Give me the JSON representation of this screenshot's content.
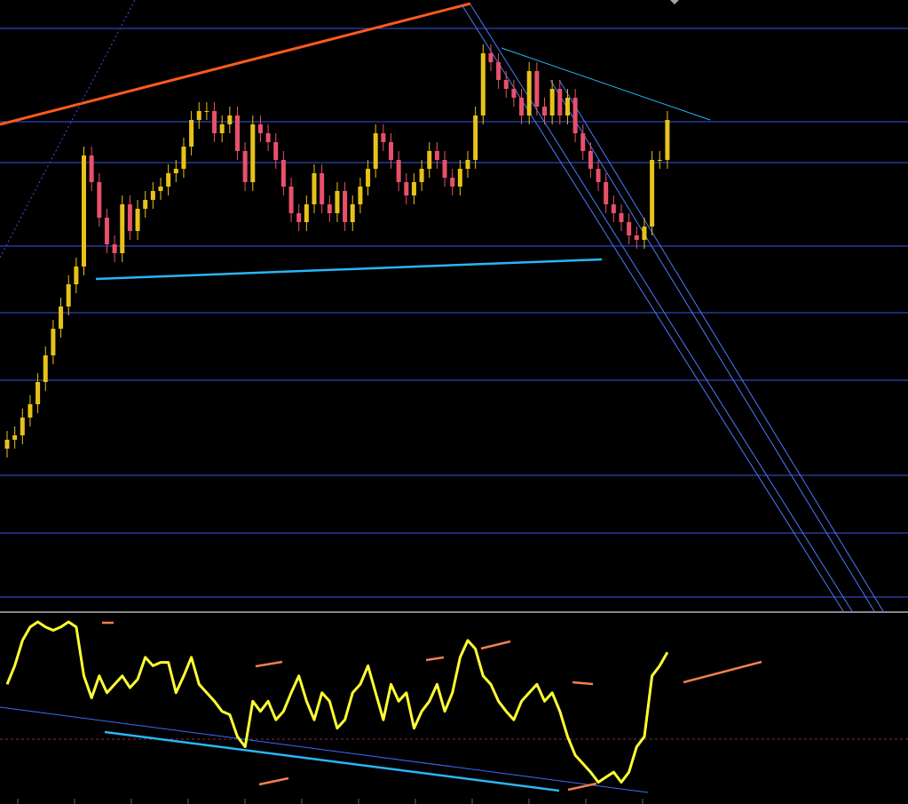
{
  "chart_data": [
    {
      "type": "candlestick",
      "up_color": "#e6c21a",
      "down_color": "#e8506a",
      "ylim": [
        0,
        690
      ],
      "open": [
        185,
        195,
        200,
        220,
        235,
        260,
        290,
        320,
        345,
        370,
        390,
        515,
        485,
        445,
        415,
        405,
        460,
        430,
        455,
        465,
        475,
        480,
        495,
        500,
        525,
        555,
        565,
        565,
        540,
        550,
        560,
        520,
        485,
        550,
        540,
        530,
        510,
        480,
        450,
        440,
        460,
        495,
        460,
        450,
        475,
        440,
        460,
        480,
        500,
        540,
        530,
        510,
        485,
        470,
        485,
        500,
        520,
        510,
        490,
        480,
        500,
        510,
        560,
        630,
        620,
        600,
        590,
        580,
        560,
        610,
        570,
        560,
        590,
        560,
        580,
        540,
        520,
        500,
        485,
        460,
        450,
        440,
        425,
        420,
        435,
        510,
        510
      ],
      "high": [
        205,
        210,
        230,
        245,
        270,
        300,
        330,
        355,
        380,
        400,
        525,
        525,
        495,
        455,
        425,
        470,
        470,
        465,
        475,
        485,
        490,
        505,
        510,
        535,
        565,
        575,
        575,
        575,
        560,
        570,
        570,
        530,
        560,
        560,
        550,
        540,
        520,
        490,
        460,
        470,
        505,
        505,
        470,
        485,
        485,
        470,
        490,
        510,
        550,
        550,
        540,
        520,
        495,
        495,
        510,
        530,
        530,
        520,
        500,
        510,
        520,
        570,
        640,
        640,
        630,
        610,
        600,
        590,
        620,
        620,
        580,
        600,
        600,
        590,
        590,
        550,
        530,
        510,
        495,
        470,
        460,
        450,
        435,
        445,
        520,
        520,
        565
      ],
      "low": [
        175,
        185,
        190,
        210,
        225,
        250,
        280,
        310,
        335,
        360,
        380,
        475,
        435,
        405,
        395,
        395,
        420,
        420,
        445,
        455,
        465,
        470,
        485,
        490,
        515,
        545,
        555,
        530,
        530,
        540,
        510,
        475,
        475,
        530,
        520,
        500,
        470,
        440,
        430,
        430,
        450,
        450,
        440,
        440,
        430,
        430,
        450,
        470,
        490,
        520,
        500,
        475,
        460,
        460,
        475,
        490,
        500,
        480,
        470,
        470,
        490,
        500,
        550,
        610,
        590,
        580,
        570,
        550,
        550,
        560,
        550,
        550,
        550,
        550,
        530,
        510,
        490,
        475,
        450,
        440,
        430,
        415,
        410,
        410,
        425,
        500,
        500
      ],
      "close": [
        195,
        200,
        220,
        235,
        260,
        290,
        320,
        345,
        370,
        390,
        515,
        485,
        445,
        415,
        405,
        460,
        430,
        455,
        465,
        475,
        480,
        495,
        500,
        525,
        555,
        565,
        565,
        540,
        550,
        560,
        520,
        485,
        550,
        540,
        530,
        510,
        480,
        450,
        440,
        460,
        495,
        460,
        450,
        475,
        440,
        460,
        480,
        500,
        540,
        530,
        510,
        485,
        470,
        485,
        500,
        520,
        510,
        490,
        480,
        500,
        510,
        560,
        630,
        620,
        600,
        590,
        580,
        560,
        610,
        570,
        560,
        590,
        560,
        580,
        540,
        520,
        500,
        485,
        460,
        450,
        440,
        425,
        420,
        435,
        510,
        510,
        555
      ]
    },
    {
      "type": "line",
      "ylim": [
        0,
        100
      ],
      "color": "#ffff33",
      "values": [
        63,
        74,
        89,
        97,
        100,
        97,
        95,
        97,
        100,
        97,
        68,
        55,
        68,
        58,
        63,
        68,
        61,
        66,
        79,
        74,
        76,
        76,
        58,
        68,
        79,
        63,
        58,
        53,
        47,
        45,
        32,
        26,
        53,
        47,
        53,
        42,
        47,
        58,
        68,
        53,
        42,
        58,
        53,
        37,
        42,
        58,
        63,
        74,
        58,
        42,
        63,
        53,
        58,
        37,
        47,
        53,
        63,
        47,
        58,
        79,
        89,
        84,
        68,
        63,
        53,
        47,
        42,
        53,
        58,
        63,
        53,
        58,
        47,
        32,
        21,
        16,
        11,
        5,
        8,
        11,
        5,
        11,
        26,
        32,
        68,
        74,
        82
      ]
    }
  ]
}
